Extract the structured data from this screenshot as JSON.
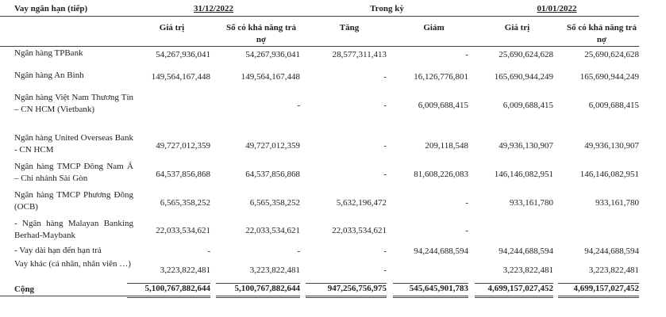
{
  "header": {
    "title": "Vay ngắn hạn (tiếp)",
    "group_1": "31/12/2022",
    "group_2": "Trong kỳ",
    "group_3": "01/01/2022"
  },
  "columns": [
    "Giá trị",
    "Số có khả năng trả nợ",
    "Tăng",
    "Giảm",
    "Giá trị",
    "Số có khả năng trả nợ"
  ],
  "rows": [
    {
      "label": "Ngân hàng TPBank",
      "cells": [
        "54,267,936,041",
        "54,267,936,041",
        "28,577,311,413",
        "-",
        "25,690,624,628",
        "25,690,624,628"
      ]
    },
    {
      "label": "Ngân hàng An Bình",
      "cells": [
        "149,564,167,448",
        "149,564,167,448",
        "-",
        "16,126,776,801",
        "165,690,944,249",
        "165,690,944,249"
      ]
    },
    {
      "label": "Ngân hàng Việt Nam Thương Tín – CN HCM (Vietbank)",
      "cells": [
        null,
        "-",
        "-",
        "6,009,688,415",
        "6,009,688,415",
        "6,009,688,415"
      ]
    },
    {
      "label": "Ngân hàng United Overseas Bank - CN HCM",
      "cells": [
        "49,727,012,359",
        "49,727,012,359",
        "-",
        "209,118,548",
        "49,936,130,907",
        "49,936,130,907"
      ]
    },
    {
      "label": "Ngân hàng TMCP Đông Nam Á – Chi nhánh Sài Gòn",
      "cells": [
        "64,537,856,868",
        "64,537,856,868",
        "-",
        "81,608,226,083",
        "146,146,082,951",
        "146,146,082,951"
      ]
    },
    {
      "label": "Ngân hàng TMCP Phương Đông (OCB)",
      "cells": [
        "6,565,358,252",
        "6,565,358,252",
        "5,632,196,472",
        "-",
        "933,161,780",
        "933,161,780"
      ]
    },
    {
      "label": "- Ngân hàng Malayan Banking Berhad-Maybank",
      "cells": [
        "22,033,534,621",
        "22,033,534,621",
        "22,033,534,621",
        "-",
        null,
        null
      ]
    },
    {
      "label": "- Vay dài hạn đến hạn trả",
      "cells": [
        "-",
        "-",
        "-",
        "94,244,688,594",
        "94,244,688,594",
        "94,244,688,594"
      ]
    },
    {
      "label": "Vay khác (cá nhân, nhân viên …)",
      "cells": [
        "3,223,822,481",
        "3,223,822,481",
        "-",
        null,
        "3,223,822,481",
        "3,223,822,481"
      ]
    }
  ],
  "total": {
    "label": "Cộng",
    "cells": [
      "5,100,767,882,644",
      "5,100,767,882,644",
      "947,256,756,975",
      "545,645,901,783",
      "4,699,157,027,452",
      "4,699,157,027,452"
    ]
  }
}
